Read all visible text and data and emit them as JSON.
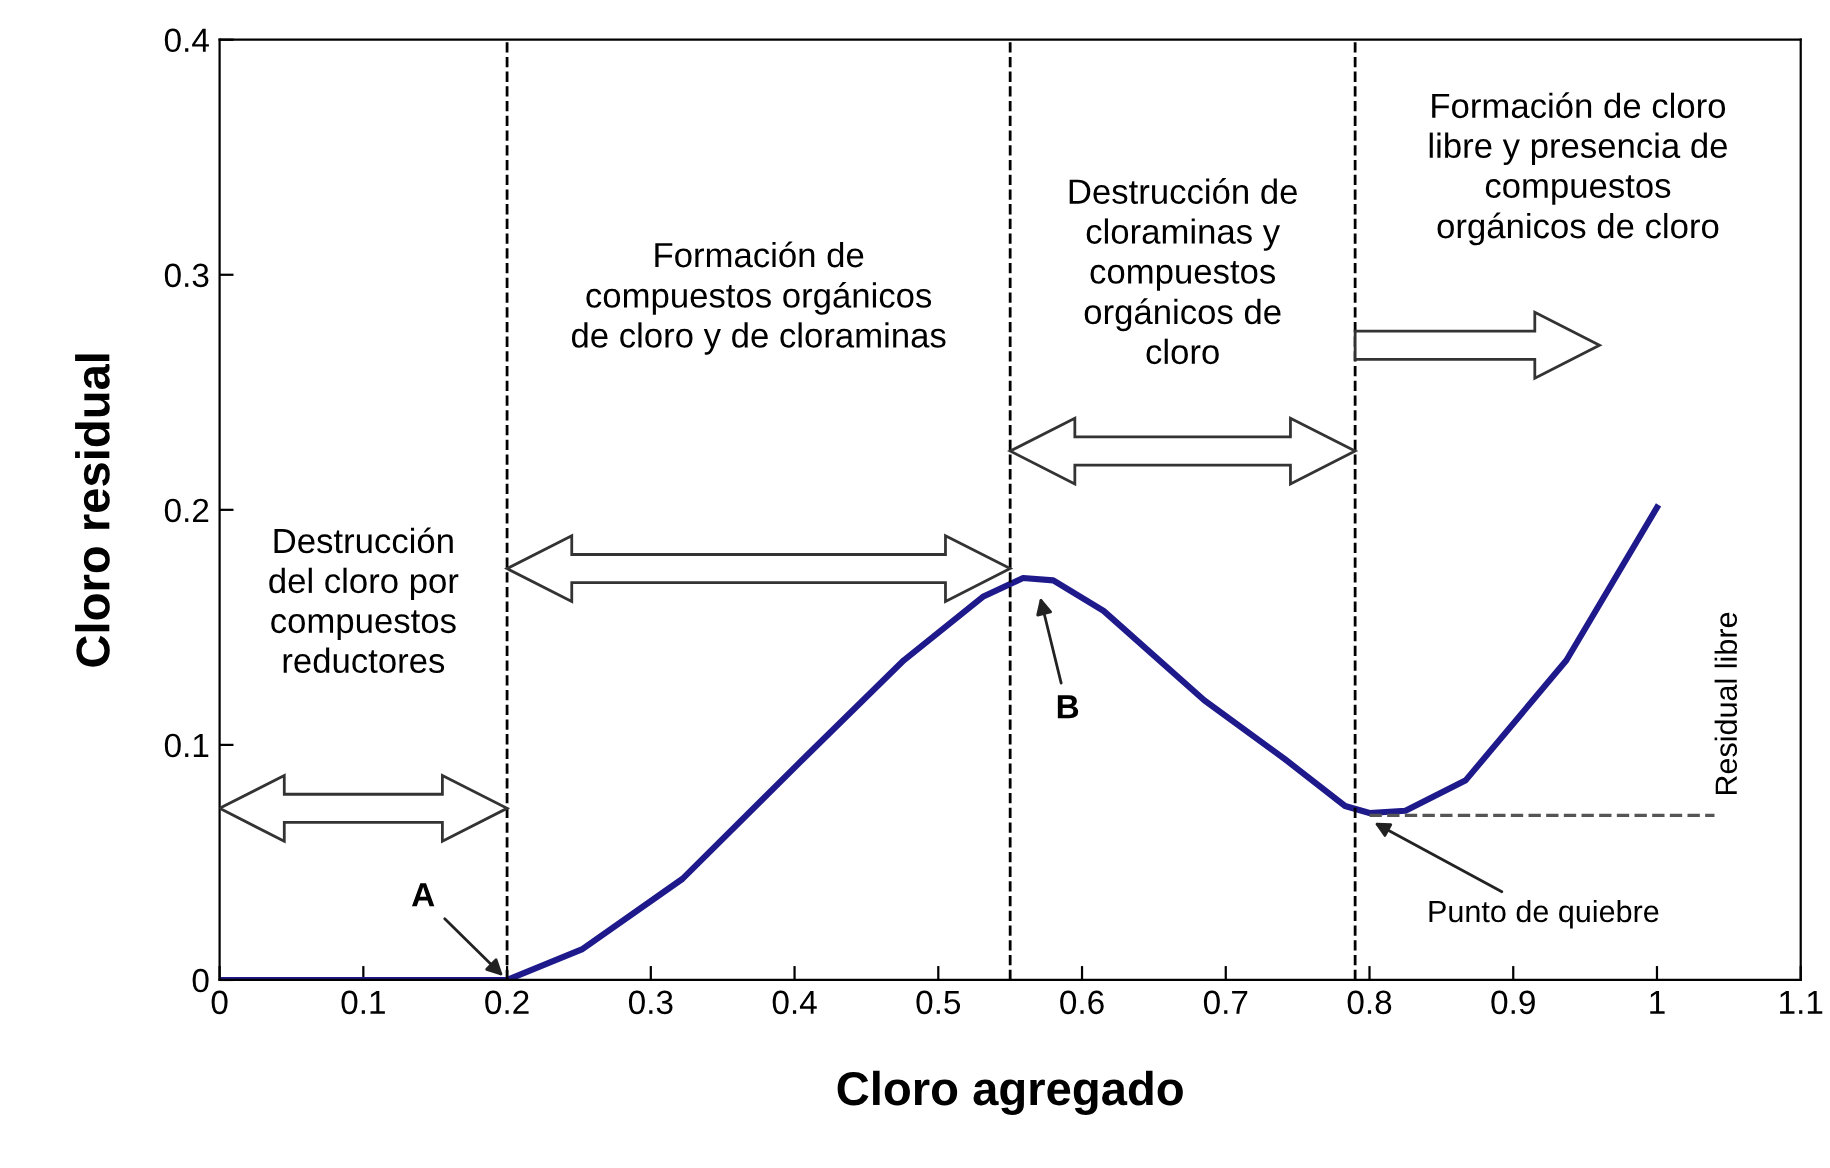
{
  "chart_data": {
    "type": "line",
    "xlabel": "Cloro agregado",
    "ylabel": "Cloro residual",
    "xlim": [
      0,
      1.1
    ],
    "ylim": [
      0,
      0.4
    ],
    "xticks": [
      0,
      0.1,
      0.2,
      0.3,
      0.4,
      0.5,
      0.6,
      0.7,
      0.8,
      0.9,
      1,
      1.1
    ],
    "yticks": [
      0,
      0.1,
      0.2,
      0.3,
      0.4
    ],
    "grid": false,
    "series": [
      {
        "color": "#1f1a8c",
        "line_style": "solid",
        "x": [
          0,
          0.1,
          0.2,
          0.252,
          0.322,
          0.406,
          0.476,
          0.531,
          0.559,
          0.58,
          0.615,
          0.685,
          0.741,
          0.783,
          0.8,
          0.825,
          0.867,
          0.937,
          1.0
        ],
        "values": [
          0,
          0,
          0,
          0.013,
          0.043,
          0.094,
          0.136,
          0.163,
          0.171,
          0.17,
          0.157,
          0.119,
          0.094,
          0.074,
          0.071,
          0.072,
          0.085,
          0.136,
          0.201
        ]
      },
      {
        "color": "#555555",
        "line_style": "dashed",
        "x": [
          0.8,
          1.04
        ],
        "values": [
          0.07,
          0.07
        ]
      }
    ],
    "ref_lines": [
      {
        "axis": "x",
        "value": 0.2,
        "color": "#000000",
        "line_style": "dashed"
      },
      {
        "axis": "x",
        "value": 0.55,
        "color": "#000000",
        "line_style": "dashed"
      },
      {
        "axis": "x",
        "value": 0.79,
        "color": "#000000",
        "line_style": "dashed"
      }
    ],
    "annotations": [
      "Destrucción\ndel cloro por\ncompuestos\nreductores",
      "Formación de\ncompuestos orgánicos\nde cloro y de cloraminas",
      "Destrucción de\ncloraminas y\ncompuestos\norgánicos de\ncloro",
      "Formación de cloro\nlibre y presencia de\ncompuestos\norgánicos de cloro",
      {
        "text": "A",
        "x": 0.2,
        "y": 0
      },
      {
        "text": "B",
        "x": 0.57,
        "y": 0.165
      },
      {
        "text": "Punto de quiebre",
        "x": 0.8,
        "y": 0.068
      },
      {
        "text": "Residual libre",
        "x": 1.04,
        "y": 0.07
      }
    ]
  }
}
